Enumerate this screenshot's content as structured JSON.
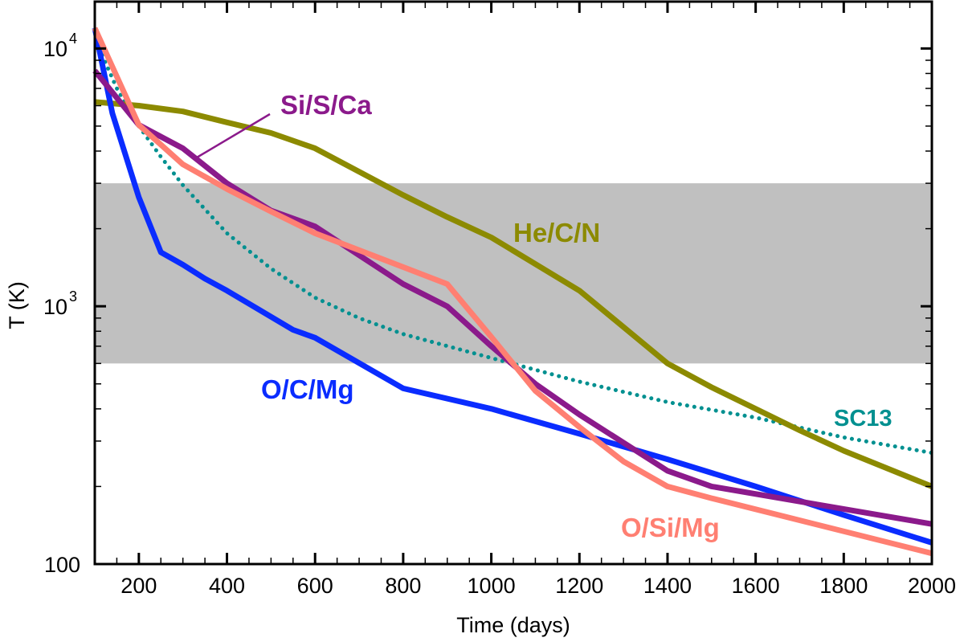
{
  "chart_data": {
    "type": "line",
    "title": "",
    "xlabel": "Time (days)",
    "ylabel": "T (K)",
    "xlim": [
      100,
      2000
    ],
    "ylim": [
      100,
      15200
    ],
    "yscale": "log",
    "grid": false,
    "x_ticks": [
      200,
      400,
      600,
      800,
      1000,
      1200,
      1400,
      1600,
      1800,
      2000
    ],
    "x_tick_labels": [
      "200",
      "400",
      "600",
      "800",
      "1000",
      "1200",
      "1400",
      "1600",
      "1800",
      "2000"
    ],
    "y_ticks": [
      100,
      1000,
      10000
    ],
    "y_tick_labels": {
      "t100": "100",
      "t1000_base": "10",
      "t1000_exp": "3",
      "t10000_base": "10",
      "t10000_exp": "4"
    },
    "shaded_band": {
      "y_range": [
        600,
        3000
      ],
      "color": "#c0c0c0"
    },
    "series": [
      {
        "name": "O/C/Mg",
        "color": "#0a2cff",
        "style": "solid",
        "x": [
          100,
          140,
          200,
          250,
          300,
          350,
          400,
          550,
          600,
          800,
          1000,
          1200,
          1400,
          1600,
          1800,
          2000
        ],
        "y": [
          12000,
          5600,
          2650,
          1620,
          1450,
          1280,
          1150,
          810,
          755,
          480,
          400,
          320,
          255,
          200,
          155,
          121
        ]
      },
      {
        "name": "Si/S/Ca",
        "color": "#8b1a8b",
        "style": "solid",
        "x": [
          100,
          200,
          300,
          400,
          500,
          600,
          800,
          900,
          1000,
          1100,
          1200,
          1400,
          1500,
          2000
        ],
        "y": [
          8200,
          5050,
          4100,
          3000,
          2350,
          2040,
          1220,
          1000,
          700,
          500,
          380,
          230,
          200,
          143
        ]
      },
      {
        "name": "He/C/N",
        "color": "#8c8a00",
        "style": "solid",
        "x": [
          100,
          200,
          300,
          400,
          500,
          600,
          800,
          900,
          1000,
          1200,
          1400,
          1500,
          1700,
          1800,
          2000
        ],
        "y": [
          6200,
          6000,
          5700,
          5170,
          4700,
          4100,
          2700,
          2220,
          1850,
          1150,
          600,
          485,
          330,
          275,
          200
        ]
      },
      {
        "name": "O/Si/Mg",
        "color": "#ff7f72",
        "style": "solid",
        "x": [
          100,
          200,
          300,
          400,
          500,
          600,
          900,
          1000,
          1100,
          1200,
          1300,
          1400,
          1500,
          2000
        ],
        "y": [
          12000,
          5050,
          3550,
          2850,
          2330,
          1920,
          1220,
          760,
          470,
          340,
          250,
          200,
          180,
          110
        ]
      },
      {
        "name": "SC13",
        "color": "#009090",
        "style": "dotted",
        "x": [
          110,
          150,
          200,
          250,
          300,
          400,
          500,
          600,
          700,
          800,
          1000,
          1200,
          1400,
          1600,
          1800,
          2000
        ],
        "y": [
          10000,
          7000,
          5000,
          3800,
          2950,
          1920,
          1400,
          1080,
          900,
          780,
          630,
          510,
          425,
          370,
          310,
          270
        ]
      }
    ],
    "annotations": [
      {
        "text": "Si/S/Ca",
        "color": "#8b1a8b",
        "leader_line": true
      },
      {
        "text": "He/C/N",
        "color": "#8c8a00"
      },
      {
        "text": "O/C/Mg",
        "color": "#0a2cff"
      },
      {
        "text": "SC13",
        "color": "#009090"
      },
      {
        "text": "O/Si/Mg",
        "color": "#ff7f72"
      }
    ]
  }
}
